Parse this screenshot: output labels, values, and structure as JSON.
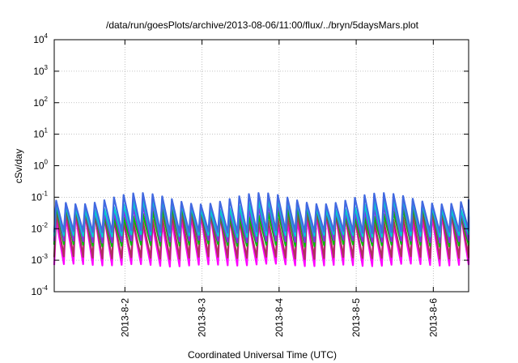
{
  "chart_data": {
    "type": "line",
    "title": "/data/run/goesPlots/archive/2013-08-06/11:00/flux/../bryn/5daysMars.plot",
    "xlabel": "Coordinated Universal Time (UTC)",
    "ylabel": "cSv/day",
    "y_scale": "log",
    "ylim": [
      0.0001,
      10000
    ],
    "y_ticks": [
      {
        "value": 0.0001,
        "base": "10",
        "exp": "-4"
      },
      {
        "value": 0.001,
        "base": "10",
        "exp": "-3"
      },
      {
        "value": 0.01,
        "base": "10",
        "exp": "-2"
      },
      {
        "value": 0.1,
        "base": "10",
        "exp": "-1"
      },
      {
        "value": 1,
        "base": "10",
        "exp": "0"
      },
      {
        "value": 10,
        "base": "10",
        "exp": "1"
      },
      {
        "value": 100,
        "base": "10",
        "exp": "2"
      },
      {
        "value": 1000,
        "base": "10",
        "exp": "3"
      },
      {
        "value": 10000,
        "base": "10",
        "exp": "4"
      }
    ],
    "xlim": [
      "2013-08-01T02:00",
      "2013-08-06T11:00"
    ],
    "x_ticks": [
      "2013-8-2",
      "2013-8-3",
      "2013-8-4",
      "2013-8-5",
      "2013-8-6"
    ],
    "grid": true,
    "pattern": {
      "period_hours": 3,
      "description": "sawtooth oscillation repeating every ~3 hours across all series"
    },
    "series": [
      {
        "color": "#ff00ff",
        "peak": 0.02,
        "trough": 0.0007
      },
      {
        "color": "#b03060",
        "peak": 0.025,
        "trough": 0.0012
      },
      {
        "color": "#00c000",
        "peak": 0.035,
        "trough": 0.003
      },
      {
        "color": "#8a2be2",
        "peak": 0.05,
        "trough": 0.004
      },
      {
        "color": "#00ced1",
        "peak": 0.06,
        "trough": 0.006
      },
      {
        "color": "#4169e1",
        "peak": 0.09,
        "trough": 0.008
      }
    ]
  }
}
